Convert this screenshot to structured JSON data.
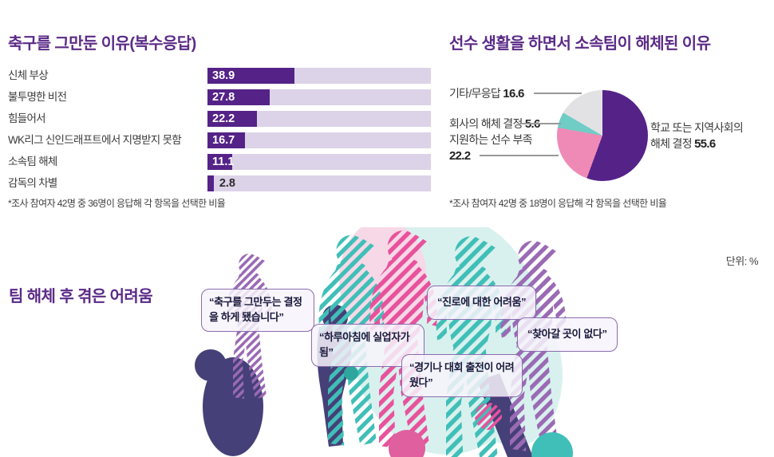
{
  "bar_section": {
    "title": "축구를 그만둔 이유(복수응답)",
    "footnote": "*조사 참여자 42명 중 36명이 응답해 각 항목을 선택한 비율"
  },
  "pie_section": {
    "title": "선수 생활을 하면서 소속팀이 해체된 이유",
    "footnote": "*조사 참여자 42명 중 18명이 응답해 각 항목을 선택한 비율",
    "labels": {
      "other_name": "기타/무응답",
      "other_value": "16.6",
      "company_name": "회사의 해체 결정",
      "company_value": "5.6",
      "lack_name": "지원하는 선수 부족",
      "lack_value": "22.2",
      "school_line1": "학교 또는 지역사회의",
      "school_line2": "해체 결정",
      "school_value": "55.6"
    }
  },
  "bottom_section": {
    "title": "팀 해체 후 겪은 어려움",
    "unit_label": "단위: %",
    "quotes": [
      "“축구를 그만두는 결정을 하게 됐습니다”",
      "“하루아침에 실업자가 됨”",
      "“진로에 대한 어려움”",
      "“찾아갈 곳이 없다”",
      "“경기나 대회 출전이 어려웠다”"
    ]
  },
  "colors": {
    "accent_purple": "#5b2b87",
    "bar_fill": "#552288",
    "bar_track": "#dcd3e8",
    "pie_purple": "#552288",
    "pie_pink": "#ef8ab7",
    "pie_teal": "#6fcdc6",
    "pie_gray": "#e2e2e4",
    "hatch_teal": "#3fbfb7",
    "hatch_pink": "#e8529c",
    "hatch_purple": "#9a6ab4",
    "navy": "#454077"
  },
  "chart_data": [
    {
      "type": "bar",
      "orientation": "horizontal",
      "title": "축구를 그만둔 이유(복수응답)",
      "categories": [
        "신체 부상",
        "불투명한 비전",
        "힘들어서",
        "WK리그 신인드래프트에서 지명받지 못함",
        "소속팀 해체",
        "감독의 차별"
      ],
      "values": [
        38.9,
        27.8,
        22.2,
        16.7,
        11.1,
        2.8
      ],
      "unit": "%",
      "xlim": [
        0,
        100
      ],
      "grid": false,
      "footnote": "*조사 참여자 42명 중 36명이 응답해 각 항목을 선택한 비율"
    },
    {
      "type": "pie",
      "title": "선수 생활을 하면서 소속팀이 해체된 이유",
      "labels": [
        "학교 또는 지역사회의 해체 결정",
        "지원하는 선수 부족",
        "회사의 해체 결정",
        "기타/무응답"
      ],
      "values": [
        55.6,
        22.2,
        5.6,
        16.6
      ],
      "colors": [
        "#552288",
        "#ef8ab7",
        "#6fcdc6",
        "#e2e2e4"
      ],
      "start": "top",
      "direction": "clockwise",
      "unit": "%",
      "footnote": "*조사 참여자 42명 중 18명이 응답해 각 항목을 선택한 비율"
    }
  ]
}
